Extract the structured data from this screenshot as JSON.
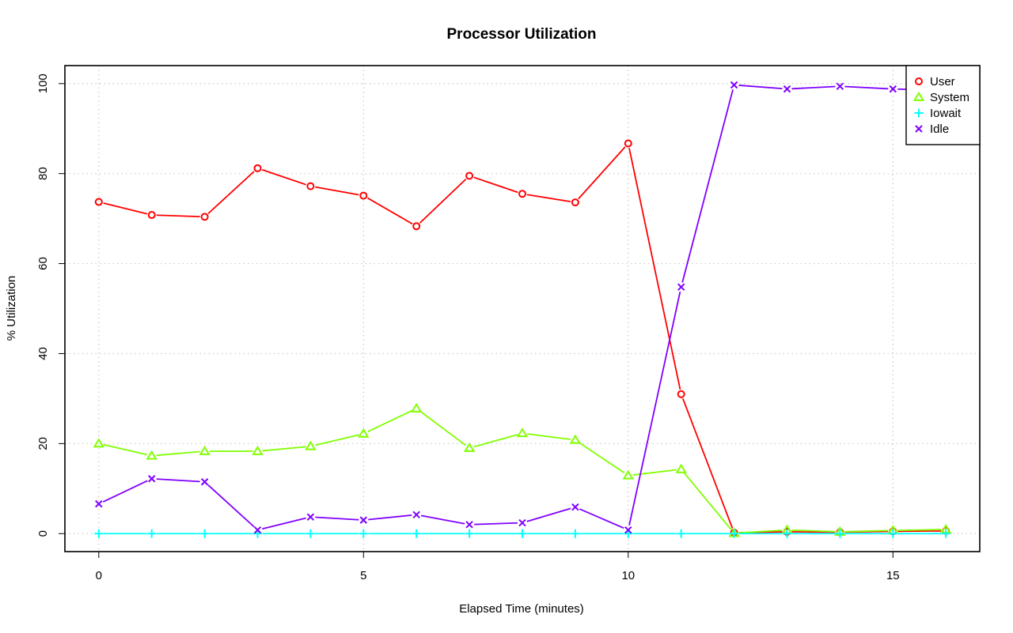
{
  "chart_data": {
    "type": "line",
    "title": "Processor Utilization",
    "xlabel": "Elapsed Time (minutes)",
    "ylabel": "% Utilization",
    "xlim": [
      -0.64,
      16.64
    ],
    "ylim": [
      -4,
      104
    ],
    "xticks": [
      0,
      5,
      10,
      15
    ],
    "yticks": [
      0,
      20,
      40,
      60,
      80,
      100
    ],
    "grid": true,
    "legend_position": "top-right",
    "x": [
      0,
      1,
      2,
      3,
      4,
      5,
      6,
      7,
      8,
      9,
      10,
      11,
      12,
      13,
      14,
      15,
      16
    ],
    "series": [
      {
        "name": "User",
        "color": "#ff0000",
        "marker": "circle",
        "values": [
          73.7,
          70.8,
          70.4,
          81.2,
          77.2,
          75.1,
          68.3,
          79.5,
          75.5,
          73.6,
          86.7,
          31.0,
          0.2,
          0.4,
          0.3,
          0.5,
          0.6
        ]
      },
      {
        "name": "System",
        "color": "#80ff00",
        "marker": "triangle",
        "values": [
          20.0,
          17.3,
          18.3,
          18.3,
          19.4,
          22.2,
          27.8,
          19.0,
          22.3,
          20.8,
          12.9,
          14.3,
          0.1,
          0.8,
          0.4,
          0.7,
          0.9
        ]
      },
      {
        "name": "Iowait",
        "color": "#00ffff",
        "marker": "plus",
        "values": [
          0.0,
          0.0,
          0.0,
          0.0,
          0.0,
          0.0,
          0.0,
          0.0,
          0.0,
          0.0,
          0.0,
          0.0,
          0.0,
          0.0,
          0.0,
          0.0,
          0.0
        ]
      },
      {
        "name": "Idle",
        "color": "#8000ff",
        "marker": "x",
        "values": [
          6.6,
          12.2,
          11.5,
          0.8,
          3.7,
          3.0,
          4.2,
          2.0,
          2.4,
          5.9,
          0.8,
          54.8,
          99.7,
          98.8,
          99.4,
          98.8,
          98.5
        ]
      }
    ]
  }
}
